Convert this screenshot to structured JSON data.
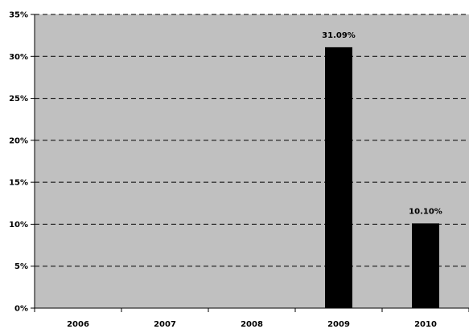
{
  "chart_data": {
    "type": "bar",
    "title": "",
    "xlabel": "",
    "ylabel": "",
    "categories": [
      "2006",
      "2007",
      "2008",
      "2009",
      "2010"
    ],
    "values": [
      null,
      null,
      null,
      31.09,
      10.1
    ],
    "data_labels": [
      "",
      "",
      "",
      "31.09%",
      "10.10%"
    ],
    "ylim": [
      0,
      35
    ],
    "yticks": [
      0,
      5,
      10,
      15,
      20,
      25,
      30,
      35
    ],
    "ytick_labels": [
      "0%",
      "5%",
      "10%",
      "15%",
      "20%",
      "25%",
      "30%",
      "35%"
    ],
    "grid": true,
    "grid_style": "dashed",
    "legend": "none",
    "colors": {
      "plot_background": "#c0c0c0",
      "bar": "#000000",
      "gridline": "#000000"
    }
  }
}
